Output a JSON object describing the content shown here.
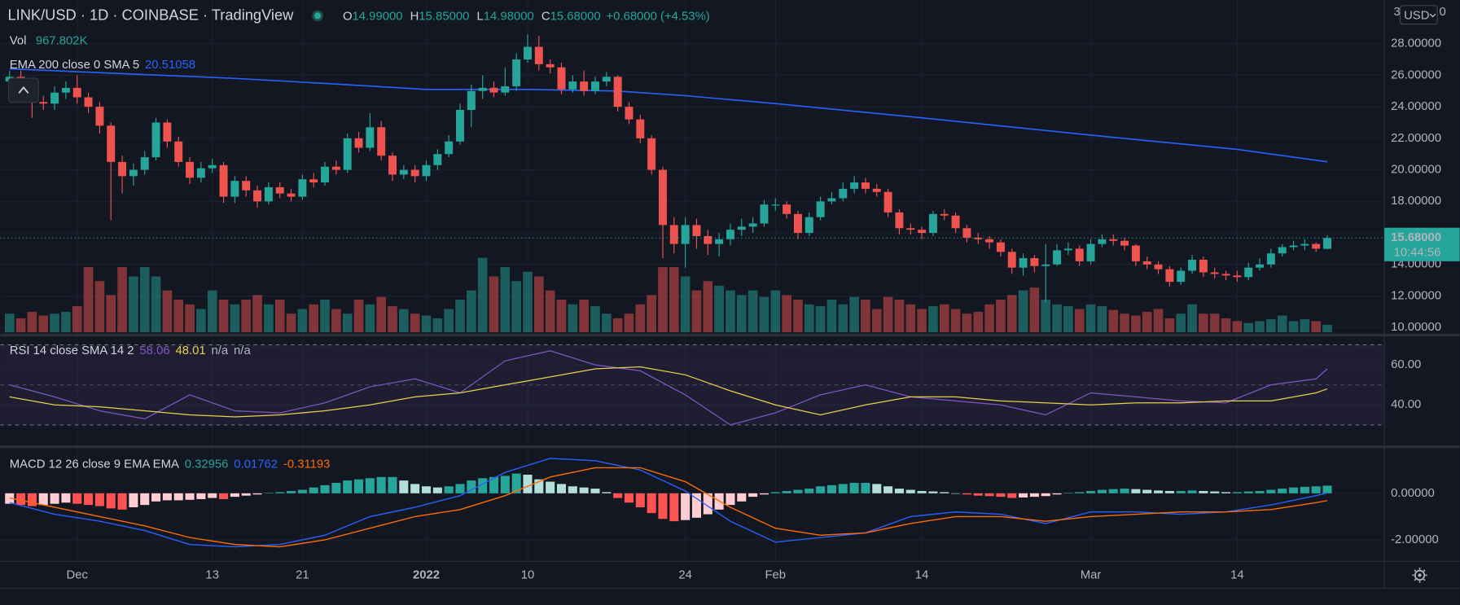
{
  "chart_data": {
    "type": "candlestick",
    "title": "LINK/USD · 1D · COINBASE · TradingView",
    "ohlc_legend": [
      {
        "label": "O",
        "value": "14.99000"
      },
      {
        "label": "H",
        "value": "15.85000"
      },
      {
        "label": "L",
        "value": "14.98000"
      },
      {
        "label": "C",
        "value": "15.68000"
      }
    ],
    "change": "+0.68000 (+4.53%)",
    "up_color": "#26a69a",
    "down_color": "#ef5350",
    "grid": true,
    "currency": "USD",
    "axis_fragments": [
      "3",
      "0"
    ],
    "xlim": [
      -0.826,
      122.066
    ],
    "xticks": [
      {
        "value": 6,
        "label": "Dec"
      },
      {
        "value": 18,
        "label": "13"
      },
      {
        "value": 26,
        "label": "21"
      },
      {
        "value": 37,
        "label": "2022"
      },
      {
        "value": 46,
        "label": "10"
      },
      {
        "value": 60,
        "label": "24"
      },
      {
        "value": 68,
        "label": "Feb"
      },
      {
        "value": 81,
        "label": "14"
      },
      {
        "value": 96,
        "label": "Mar"
      },
      {
        "value": 109,
        "label": "14"
      }
    ],
    "ylim": [
      9.7,
      30.77
    ],
    "yticks": [
      {
        "value": 10,
        "label": "10.00000"
      },
      {
        "value": 12,
        "label": "12.00000"
      },
      {
        "value": 14,
        "label": "14.00000"
      },
      {
        "value": 16,
        "label": "16.00000"
      },
      {
        "value": 18,
        "label": "18.00000"
      },
      {
        "value": 20,
        "label": "20.00000"
      },
      {
        "value": 22,
        "label": "22.00000"
      },
      {
        "value": 24,
        "label": "24.00000"
      },
      {
        "value": 26,
        "label": "26.00000"
      },
      {
        "value": 28,
        "label": "28.00000"
      }
    ],
    "price_label": {
      "value": 15.68,
      "label": "15.68000"
    },
    "countdown": "10:44:56",
    "open": [
      25.6,
      25.9,
      25.3,
      24.3,
      24.2,
      24.9,
      25.2,
      24.6,
      24.0,
      22.8,
      20.5,
      19.6,
      20.0,
      20.8,
      23.0,
      21.8,
      20.5,
      19.5,
      20.1,
      20.3,
      18.3,
      19.3,
      18.7,
      18.0,
      18.9,
      18.5,
      18.3,
      19.4,
      19.2,
      20.2,
      20.0,
      22.0,
      21.4,
      22.7,
      20.9,
      19.7,
      20.0,
      19.6,
      20.3,
      21.0,
      21.8,
      23.8,
      25.0,
      25.2,
      24.9,
      25.3,
      27.0,
      27.8,
      26.7,
      26.5,
      25.1,
      25.6,
      25.0,
      25.6,
      25.9,
      24.0,
      23.2,
      22.0,
      20.0,
      16.5,
      15.3,
      16.5,
      15.8,
      15.3,
      15.6,
      16.2,
      16.4,
      16.6,
      17.8,
      17.8,
      17.2,
      16.0,
      17.0,
      18.0,
      18.2,
      18.8,
      19.2,
      18.8,
      18.6,
      17.3,
      16.3,
      16.2,
      16.0,
      17.2,
      17.1,
      16.3,
      15.7,
      15.6,
      15.4,
      14.8,
      13.8,
      14.4,
      13.9,
      14.0,
      14.9,
      15.0,
      14.2,
      15.3,
      15.6,
      15.5,
      15.2,
      14.2,
      14.0,
      13.7,
      12.9,
      13.6,
      14.3,
      13.5,
      13.4,
      13.3,
      13.2,
      13.8,
      14.0,
      14.7,
      15.1,
      15.2,
      15.3,
      14.99
    ],
    "high": [
      26.3,
      26.3,
      25.7,
      24.7,
      25.3,
      25.6,
      26.0,
      24.9,
      24.3,
      23.0,
      20.9,
      20.4,
      21.2,
      23.3,
      23.2,
      22.1,
      20.8,
      20.5,
      20.7,
      20.5,
      19.6,
      19.6,
      19.0,
      19.2,
      19.2,
      18.8,
      19.7,
      19.8,
      20.5,
      20.6,
      22.3,
      22.4,
      23.6,
      23.1,
      21.1,
      20.3,
      20.3,
      20.6,
      21.3,
      22.2,
      24.2,
      25.4,
      26.0,
      25.6,
      26.5,
      27.4,
      28.6,
      28.5,
      27.0,
      26.8,
      26.0,
      26.3,
      25.9,
      26.2,
      26.0,
      24.3,
      23.5,
      22.2,
      20.2,
      17.0,
      17.0,
      16.9,
      16.2,
      16.0,
      16.6,
      16.9,
      17.0,
      18.1,
      18.2,
      18.0,
      17.4,
      17.3,
      18.3,
      18.6,
      19.2,
      19.6,
      19.5,
      19.1,
      18.8,
      17.5,
      16.6,
      16.4,
      17.4,
      17.5,
      17.3,
      16.5,
      16.0,
      15.8,
      15.6,
      15.0,
      14.7,
      14.6,
      15.3,
      15.3,
      15.4,
      15.2,
      15.6,
      15.9,
      15.9,
      15.7,
      15.3,
      14.5,
      14.2,
      13.9,
      13.8,
      14.6,
      14.5,
      13.8,
      13.6,
      13.6,
      14.1,
      14.4,
      15.0,
      15.3,
      15.5,
      15.6,
      15.4,
      15.85
    ],
    "low": [
      25.2,
      24.9,
      23.3,
      23.8,
      23.8,
      24.5,
      24.2,
      23.6,
      22.3,
      16.8,
      18.5,
      19.0,
      19.7,
      20.6,
      21.4,
      20.2,
      19.1,
      19.2,
      19.8,
      17.9,
      17.9,
      18.3,
      17.6,
      17.8,
      18.2,
      18.0,
      18.1,
      18.9,
      19.0,
      19.7,
      19.8,
      21.1,
      21.2,
      20.6,
      19.3,
      19.4,
      19.2,
      19.3,
      20.0,
      20.8,
      21.6,
      22.7,
      24.5,
      24.6,
      24.7,
      25.0,
      26.8,
      26.3,
      26.1,
      24.8,
      24.9,
      24.7,
      24.8,
      25.3,
      23.7,
      22.9,
      21.7,
      19.7,
      14.4,
      14.7,
      13.8,
      15.0,
      14.6,
      14.5,
      15.2,
      15.8,
      16.0,
      16.4,
      17.4,
      16.9,
      15.6,
      15.8,
      16.8,
      17.8,
      18.0,
      18.5,
      18.5,
      18.3,
      17.0,
      15.9,
      15.9,
      15.6,
      15.8,
      16.8,
      16.0,
      15.4,
      15.3,
      15.0,
      14.5,
      13.4,
      13.3,
      13.5,
      11.6,
      13.9,
      14.6,
      13.9,
      14.0,
      15.1,
      15.2,
      14.9,
      13.9,
      13.7,
      13.4,
      12.6,
      12.7,
      13.4,
      13.2,
      13.1,
      13.0,
      12.9,
      13.0,
      13.6,
      13.8,
      14.5,
      14.9,
      14.9,
      14.8,
      14.98
    ],
    "close": [
      25.9,
      25.3,
      24.3,
      24.2,
      24.9,
      25.2,
      24.6,
      24.0,
      22.8,
      20.5,
      19.6,
      20.0,
      20.8,
      23.0,
      21.8,
      20.5,
      19.5,
      20.1,
      20.3,
      18.3,
      19.3,
      18.7,
      18.0,
      18.9,
      18.5,
      18.3,
      19.4,
      19.2,
      20.2,
      20.0,
      22.0,
      21.4,
      22.7,
      20.9,
      19.7,
      20.0,
      19.6,
      20.3,
      21.0,
      21.8,
      23.8,
      25.0,
      25.2,
      24.9,
      25.3,
      27.0,
      27.8,
      26.7,
      26.5,
      25.1,
      25.6,
      25.0,
      25.6,
      25.9,
      24.0,
      23.2,
      22.0,
      20.0,
      16.5,
      15.3,
      16.5,
      15.8,
      15.3,
      15.6,
      16.2,
      16.4,
      16.6,
      17.8,
      17.8,
      17.2,
      16.0,
      17.0,
      18.0,
      18.2,
      18.8,
      19.2,
      18.8,
      18.6,
      17.3,
      16.3,
      16.2,
      16.0,
      17.2,
      17.1,
      16.3,
      15.7,
      15.6,
      15.4,
      14.8,
      13.8,
      14.4,
      13.9,
      14.0,
      14.9,
      15.0,
      14.2,
      15.3,
      15.6,
      15.5,
      15.2,
      14.2,
      14.0,
      13.7,
      12.9,
      13.6,
      14.3,
      13.5,
      13.4,
      13.3,
      13.2,
      13.8,
      14.0,
      14.7,
      15.1,
      15.2,
      15.3,
      15.0,
      15.68
    ],
    "volume": {
      "legend": "Vol",
      "legend_value": "967.802K",
      "values": [
        2400,
        1800,
        2640,
        2160,
        2400,
        2640,
        3360,
        8400,
        6600,
        4800,
        8400,
        7200,
        8400,
        7200,
        5400,
        4200,
        3600,
        3000,
        5400,
        4200,
        3600,
        4200,
        4800,
        3600,
        4200,
        2400,
        3000,
        3600,
        4200,
        3000,
        2400,
        4200,
        3600,
        4560,
        3360,
        3000,
        2400,
        2160,
        1800,
        3000,
        4200,
        5400,
        9600,
        7200,
        8400,
        6600,
        7800,
        7200,
        5400,
        4200,
        3600,
        4200,
        3360,
        2400,
        1800,
        2400,
        3600,
        4800,
        8400,
        8400,
        7200,
        5400,
        6600,
        6000,
        5400,
        4800,
        5400,
        4560,
        5400,
        4800,
        4200,
        3600,
        3360,
        4200,
        3600,
        4560,
        4200,
        3000,
        4560,
        4200,
        3600,
        3000,
        3360,
        3600,
        3000,
        2400,
        2640,
        3600,
        4200,
        4800,
        5400,
        5760,
        4200,
        3600,
        3360,
        3000,
        3600,
        3360,
        2880,
        2400,
        2160,
        2640,
        3000,
        1800,
        2400,
        3600,
        2400,
        2400,
        1800,
        1440,
        1200,
        1440,
        1680,
        2160,
        1440,
        1680,
        1440,
        967.802
      ]
    },
    "ema": {
      "legend": "EMA 200 close 0 SMA 5",
      "legend_value": "20.51058",
      "color": "#2962ff",
      "x": [
        0,
        10,
        20,
        30,
        37,
        46,
        54,
        60,
        68,
        81,
        96,
        109,
        117
      ],
      "values": [
        26.4,
        26.1,
        25.8,
        25.4,
        25.1,
        25.1,
        25.0,
        24.7,
        24.2,
        23.3,
        22.2,
        21.3,
        20.51058
      ]
    },
    "rsi": {
      "legend": "RSI 14 close SMA 14 2",
      "na_values": [
        "n/a",
        "n/a"
      ],
      "ylim": [
        20,
        73.95
      ],
      "yticks": [
        {
          "value": 40,
          "label": "40.00"
        },
        {
          "value": 60,
          "label": "60.00"
        }
      ],
      "levels": [
        30,
        50,
        70
      ],
      "x": [
        0,
        4,
        8,
        12,
        16,
        20,
        24,
        28,
        32,
        36,
        40,
        44,
        48,
        52,
        56,
        60,
        64,
        68,
        72,
        76,
        80,
        84,
        88,
        92,
        96,
        100,
        104,
        108,
        112,
        116,
        117
      ],
      "series": [
        {
          "color": "#7e57c2",
          "legend_value": "58.06",
          "values": [
            50,
            44,
            37,
            33,
            45,
            37,
            36,
            41,
            49,
            53,
            46,
            62,
            67,
            60,
            57,
            45,
            30,
            36,
            45,
            50,
            44,
            42,
            40,
            35,
            46,
            44,
            42,
            41,
            50,
            53,
            58.06
          ]
        },
        {
          "color": "#e8d04f",
          "legend_value": "48.01",
          "values": [
            44,
            40,
            39,
            37,
            35,
            34,
            35,
            37,
            40,
            44,
            46,
            50,
            54,
            58,
            59,
            55,
            47,
            40,
            35,
            40,
            44,
            44,
            42,
            41,
            40,
            41,
            41,
            42,
            42,
            46,
            48.01
          ]
        }
      ]
    },
    "macd": {
      "legend": "MACD 12 26 close 9 EMA EMA",
      "ylim": [
        -2.92,
        1.96
      ],
      "yticks": [
        {
          "value": 0,
          "label": "0.00000"
        },
        {
          "value": -2,
          "label": "-2.00000"
        }
      ],
      "hist_legend_value": "0.32956",
      "hist_colors": [
        "#26a69a",
        "#b2dfdb",
        "#ffcdd2",
        "#ff5252"
      ],
      "histogram": [
        -0.45,
        -0.5,
        -0.55,
        -0.5,
        -0.45,
        -0.4,
        -0.45,
        -0.5,
        -0.55,
        -0.65,
        -0.7,
        -0.6,
        -0.5,
        -0.35,
        -0.3,
        -0.3,
        -0.28,
        -0.25,
        -0.2,
        -0.25,
        -0.15,
        -0.1,
        -0.05,
        0.02,
        0.05,
        0.1,
        0.15,
        0.25,
        0.35,
        0.45,
        0.55,
        0.6,
        0.65,
        0.7,
        0.7,
        0.55,
        0.4,
        0.3,
        0.25,
        0.3,
        0.4,
        0.55,
        0.65,
        0.7,
        0.75,
        0.85,
        0.8,
        0.6,
        0.5,
        0.4,
        0.3,
        0.25,
        0.2,
        0.05,
        -0.2,
        -0.4,
        -0.6,
        -0.85,
        -1.1,
        -1.2,
        -1.15,
        -1.05,
        -0.9,
        -0.7,
        -0.5,
        -0.35,
        -0.15,
        -0.05,
        0.05,
        0.1,
        0.15,
        0.2,
        0.3,
        0.35,
        0.4,
        0.45,
        0.45,
        0.4,
        0.3,
        0.2,
        0.15,
        0.1,
        0.08,
        0.05,
        0.0,
        -0.05,
        -0.1,
        -0.12,
        -0.15,
        -0.2,
        -0.18,
        -0.15,
        -0.12,
        -0.05,
        0.02,
        0.05,
        0.1,
        0.15,
        0.18,
        0.2,
        0.18,
        0.15,
        0.12,
        0.1,
        0.1,
        0.12,
        0.1,
        0.08,
        0.05,
        0.05,
        0.08,
        0.1,
        0.15,
        0.2,
        0.25,
        0.28,
        0.3,
        0.32956
      ],
      "x": [
        0,
        4,
        8,
        12,
        16,
        20,
        24,
        28,
        32,
        36,
        40,
        44,
        48,
        52,
        56,
        60,
        64,
        68,
        72,
        76,
        80,
        84,
        88,
        92,
        96,
        100,
        104,
        108,
        112,
        116,
        117
      ],
      "series": [
        {
          "color": "#2962ff",
          "legend_value": "0.01762",
          "values": [
            -0.4,
            -0.9,
            -1.2,
            -1.6,
            -2.2,
            -2.3,
            -2.2,
            -1.8,
            -1.0,
            -0.6,
            -0.1,
            0.9,
            1.5,
            1.4,
            1.0,
            0.1,
            -1.2,
            -2.1,
            -1.9,
            -1.7,
            -1.0,
            -0.8,
            -0.9,
            -1.3,
            -0.8,
            -0.8,
            -0.9,
            -0.8,
            -0.5,
            -0.1,
            0.01762
          ]
        },
        {
          "color": "#ff6d00",
          "legend_value": "-0.31193",
          "values": [
            -0.2,
            -0.6,
            -1.0,
            -1.4,
            -1.9,
            -2.2,
            -2.3,
            -2.0,
            -1.5,
            -1.0,
            -0.7,
            -0.1,
            0.7,
            1.1,
            1.1,
            0.5,
            -0.6,
            -1.5,
            -1.8,
            -1.7,
            -1.3,
            -1.0,
            -1.0,
            -1.2,
            -1.0,
            -0.9,
            -0.8,
            -0.8,
            -0.7,
            -0.4,
            -0.31193
          ]
        }
      ]
    }
  }
}
